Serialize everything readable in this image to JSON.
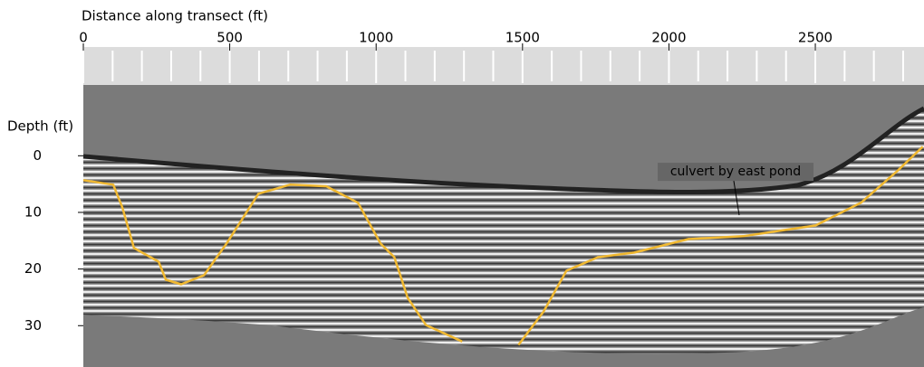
{
  "chart_data": {
    "type": "line",
    "x_label": "Distance along transect (ft)",
    "y_label": "Depth (ft)",
    "xlim": [
      0,
      2865
    ],
    "xticks": [
      0,
      500,
      1000,
      1500,
      2000,
      2500
    ],
    "xminorticks": [
      100,
      200,
      300,
      400,
      600,
      700,
      800,
      900,
      1100,
      1200,
      1300,
      1400,
      1600,
      1700,
      1800,
      1900,
      2100,
      2200,
      2300,
      2400,
      2600,
      2700,
      2800
    ],
    "ylim": [
      -12.5,
      37.3
    ],
    "y_inverted": true,
    "yticks": [
      0,
      10,
      20,
      30
    ],
    "series": [
      {
        "color": "#f0b830",
        "x": [
          0,
          102,
          133,
          173,
          257,
          282,
          334,
          412,
          489,
          598,
          706,
          830,
          938,
          1015,
          1062,
          1108,
          1170,
          1294,
          null,
          1486,
          1572,
          1650,
          1758,
          1882,
          2068,
          2254,
          2501,
          2656,
          2780,
          2867
        ],
        "values": [
          4.3,
          5.1,
          9.1,
          16.3,
          18.7,
          21.9,
          22.7,
          21.1,
          15.5,
          6.7,
          5.1,
          5.4,
          8.3,
          15.5,
          17.9,
          25.1,
          29.9,
          32.8,
          null,
          33.4,
          27.5,
          20.3,
          17.9,
          17.1,
          14.7,
          14.2,
          12.3,
          8.3,
          2.7,
          -1.6
        ]
      }
    ],
    "annotations": [
      {
        "text": "culvert by east pond",
        "x": 2240,
        "y": 10.5
      }
    ]
  }
}
